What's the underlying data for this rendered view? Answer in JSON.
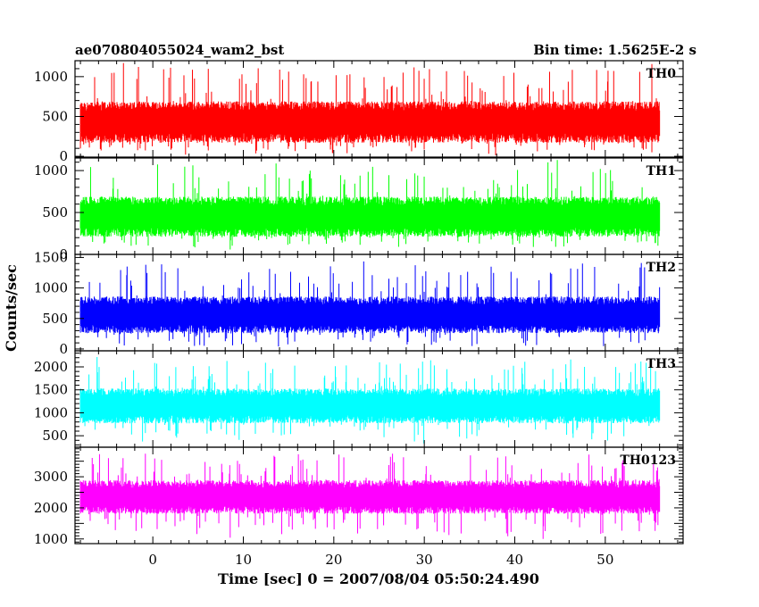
{
  "header": {
    "title": "ae070804055024_wam2_bst",
    "bin_time": "Bin time: 1.5625E-2 s"
  },
  "chart_data": {
    "type": "line",
    "xlabel": "Time [sec] 0 = 2007/08/04 05:50:24.490",
    "ylabel": "Counts/sec",
    "xlim": [
      -8.6,
      58.6
    ],
    "x_ticks": [
      0,
      10,
      20,
      30,
      40,
      50
    ],
    "x_range_data": [
      -8,
      56
    ],
    "panels": [
      {
        "name": "TH0",
        "color": "#ff0000",
        "ylim": [
          -10,
          1200
        ],
        "y_ticks": [
          0,
          500,
          1000
        ],
        "base": 430,
        "spread": 260,
        "max": 1200,
        "min": 0
      },
      {
        "name": "TH1",
        "color": "#00ff00",
        "ylim": [
          0,
          1150
        ],
        "y_ticks": [
          0,
          500,
          1000
        ],
        "base": 450,
        "spread": 240,
        "max": 1150,
        "min": 40
      },
      {
        "name": "TH2",
        "color": "#0000ff",
        "ylim": [
          -30,
          1550
        ],
        "y_ticks": [
          0,
          500,
          1000,
          1500
        ],
        "base": 560,
        "spread": 300,
        "max": 1500,
        "min": 0
      },
      {
        "name": "TH3",
        "color": "#00ffff",
        "ylim": [
          250,
          2350
        ],
        "y_ticks": [
          500,
          1000,
          1500,
          2000
        ],
        "base": 1150,
        "spread": 380,
        "max": 2250,
        "min": 300
      },
      {
        "name": "TH0123",
        "color": "#ff00ff",
        "ylim": [
          850,
          3950
        ],
        "y_ticks": [
          1000,
          2000,
          3000
        ],
        "base": 2350,
        "spread": 540,
        "max": 3850,
        "min": 950
      }
    ]
  }
}
